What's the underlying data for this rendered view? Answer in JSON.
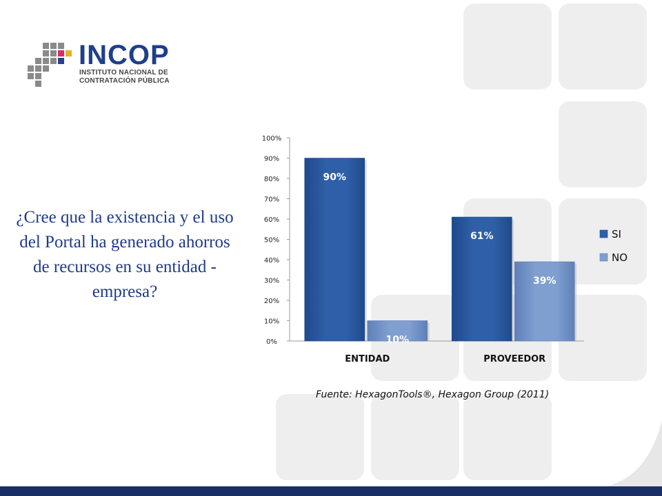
{
  "logo": {
    "name": "INCOP",
    "subtitle_line1": "INSTITUTO NACIONAL DE",
    "subtitle_line2": "CONTRATACIÓN PÚBLICA"
  },
  "question": "¿Cree que la existencia y el uso del Portal ha generado ahorros de recursos en su entidad - empresa?",
  "source": "Fuente: HexagonTools®, Hexagon Group (2011)",
  "colors": {
    "si": "#2f5fa8",
    "no": "#7f9fd0",
    "text": "#1f3a8a",
    "tiles": "#eeeeee",
    "footer_bar": "#1a2e66"
  },
  "chart_data": {
    "type": "bar",
    "categories": [
      "ENTIDAD",
      "PROVEEDOR"
    ],
    "series": [
      {
        "name": "SI",
        "values": [
          90,
          61
        ]
      },
      {
        "name": "NO",
        "values": [
          10,
          39
        ]
      }
    ],
    "data_labels": [
      [
        "90%",
        "61%"
      ],
      [
        "10%",
        "39%"
      ]
    ],
    "y_ticks": [
      "0%",
      "10%",
      "20%",
      "30%",
      "40%",
      "50%",
      "60%",
      "70%",
      "80%",
      "90%",
      "100%"
    ],
    "ylim": [
      0,
      100
    ],
    "grid": false,
    "legend_position": "right"
  }
}
